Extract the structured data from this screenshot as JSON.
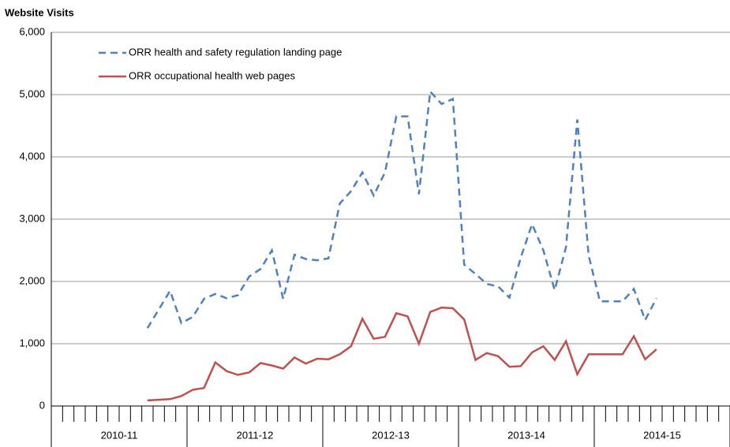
{
  "chart_data": {
    "type": "line",
    "y_axis_title": "Website Visits",
    "categories": [
      null,
      null,
      null,
      null,
      null,
      null,
      null,
      null,
      null,
      null,
      null,
      null,
      null,
      null,
      null,
      null,
      null,
      null,
      null,
      null,
      null,
      null,
      null,
      null,
      null,
      null,
      null,
      null,
      null,
      null,
      null,
      null,
      null,
      null,
      null,
      null,
      null,
      null,
      null,
      null,
      null,
      null,
      null,
      null,
      null,
      null,
      null,
      null,
      null,
      null,
      null,
      null,
      null,
      null,
      null,
      null,
      null,
      null,
      null,
      null
    ],
    "x_group_labels": [
      "2010-11",
      "2011-12",
      "2012-13",
      "2013-14",
      "2014-15"
    ],
    "series": [
      {
        "name": "ORR health and safety regulation landing page",
        "color": "#4f81bd",
        "dashed": true,
        "values": [
          null,
          null,
          null,
          null,
          null,
          null,
          null,
          null,
          1250,
          1550,
          1850,
          1330,
          1430,
          1720,
          1800,
          1730,
          1780,
          2080,
          2200,
          2500,
          1720,
          2430,
          2360,
          2340,
          2370,
          3250,
          3450,
          3750,
          3380,
          3750,
          4650,
          4650,
          3400,
          5050,
          4850,
          4930,
          2270,
          2120,
          1960,
          1920,
          1740,
          2380,
          2920,
          2500,
          1860,
          2550,
          4600,
          2420,
          1680,
          1680,
          1680,
          1880,
          1380,
          1730,
          null,
          null,
          null,
          null,
          null,
          null
        ]
      },
      {
        "name": "ORR occupational health web pages",
        "color": "#c0504d",
        "dashed": false,
        "values": [
          null,
          null,
          null,
          null,
          null,
          null,
          null,
          null,
          90,
          100,
          110,
          160,
          260,
          290,
          700,
          560,
          500,
          540,
          690,
          650,
          600,
          780,
          680,
          760,
          750,
          830,
          960,
          1400,
          1080,
          1110,
          1490,
          1440,
          1000,
          1510,
          1580,
          1570,
          1390,
          740,
          850,
          800,
          630,
          640,
          860,
          960,
          740,
          1040,
          510,
          830,
          830,
          830,
          830,
          1120,
          750,
          910,
          null,
          null,
          null,
          null,
          null,
          null
        ]
      }
    ],
    "ylim": [
      0,
      6000
    ],
    "yticks": [
      0,
      {
        "value": 1000,
        "label": "1,000"
      },
      {
        "value": 2000,
        "label": "2,000"
      },
      {
        "value": 3000,
        "label": "3,000"
      },
      {
        "value": 4000,
        "label": "4,000"
      },
      {
        "value": 5000,
        "label": "5,000"
      },
      {
        "value": 6000,
        "label": "6,000"
      }
    ],
    "grid": true
  }
}
